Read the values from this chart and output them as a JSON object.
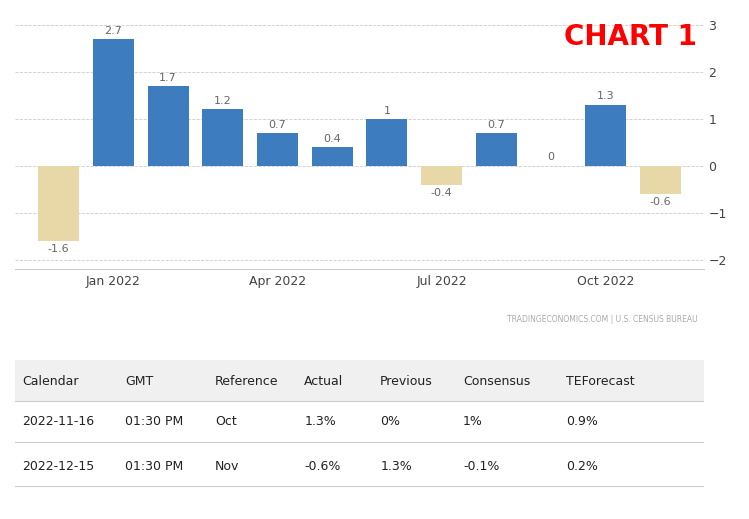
{
  "bars": [
    {
      "x": 0,
      "value": -1.6,
      "label": "-1.6"
    },
    {
      "x": 1,
      "value": 2.7,
      "label": "2.7"
    },
    {
      "x": 2,
      "value": 1.7,
      "label": "1.7"
    },
    {
      "x": 3,
      "value": 1.2,
      "label": "1.2"
    },
    {
      "x": 4,
      "value": 0.7,
      "label": "0.7"
    },
    {
      "x": 5,
      "value": 0.4,
      "label": "0.4"
    },
    {
      "x": 6,
      "value": 1.0,
      "label": "1"
    },
    {
      "x": 7,
      "value": -0.4,
      "label": "-0.4"
    },
    {
      "x": 8,
      "value": 0.7,
      "label": "0.7"
    },
    {
      "x": 9,
      "value": 0.0,
      "label": "0"
    },
    {
      "x": 10,
      "value": 1.3,
      "label": "1.3"
    },
    {
      "x": 11,
      "value": -0.6,
      "label": "-0.6"
    }
  ],
  "positive_color": "#3d7dbf",
  "negative_color": "#e8d8a8",
  "ylim": [
    -2.2,
    3.2
  ],
  "yticks": [
    -2,
    -1,
    0,
    1,
    2,
    3
  ],
  "xtick_positions": [
    1,
    4,
    7,
    10
  ],
  "xtick_labels": [
    "Jan 2022",
    "Apr 2022",
    "Jul 2022",
    "Oct 2022"
  ],
  "chart_title": "CHART 1",
  "chart_title_color": "#ff0000",
  "watermark": "TRADINGECONOMICS.COM | U.S. CENSUS BUREAU",
  "table_headers": [
    "Calendar",
    "GMT",
    "Reference",
    "Actual",
    "Previous",
    "Consensus",
    "TEForecast"
  ],
  "table_rows": [
    [
      "2022-11-16",
      "01:30 PM",
      "Oct",
      "1.3%",
      "0%",
      "1%",
      "0.9%"
    ],
    [
      "2022-12-15",
      "01:30 PM",
      "Nov",
      "-0.6%",
      "1.3%",
      "-0.1%",
      "0.2%"
    ]
  ],
  "background_color": "#ffffff",
  "grid_color": "#cccccc",
  "table_header_bg": "#f0f0f0"
}
